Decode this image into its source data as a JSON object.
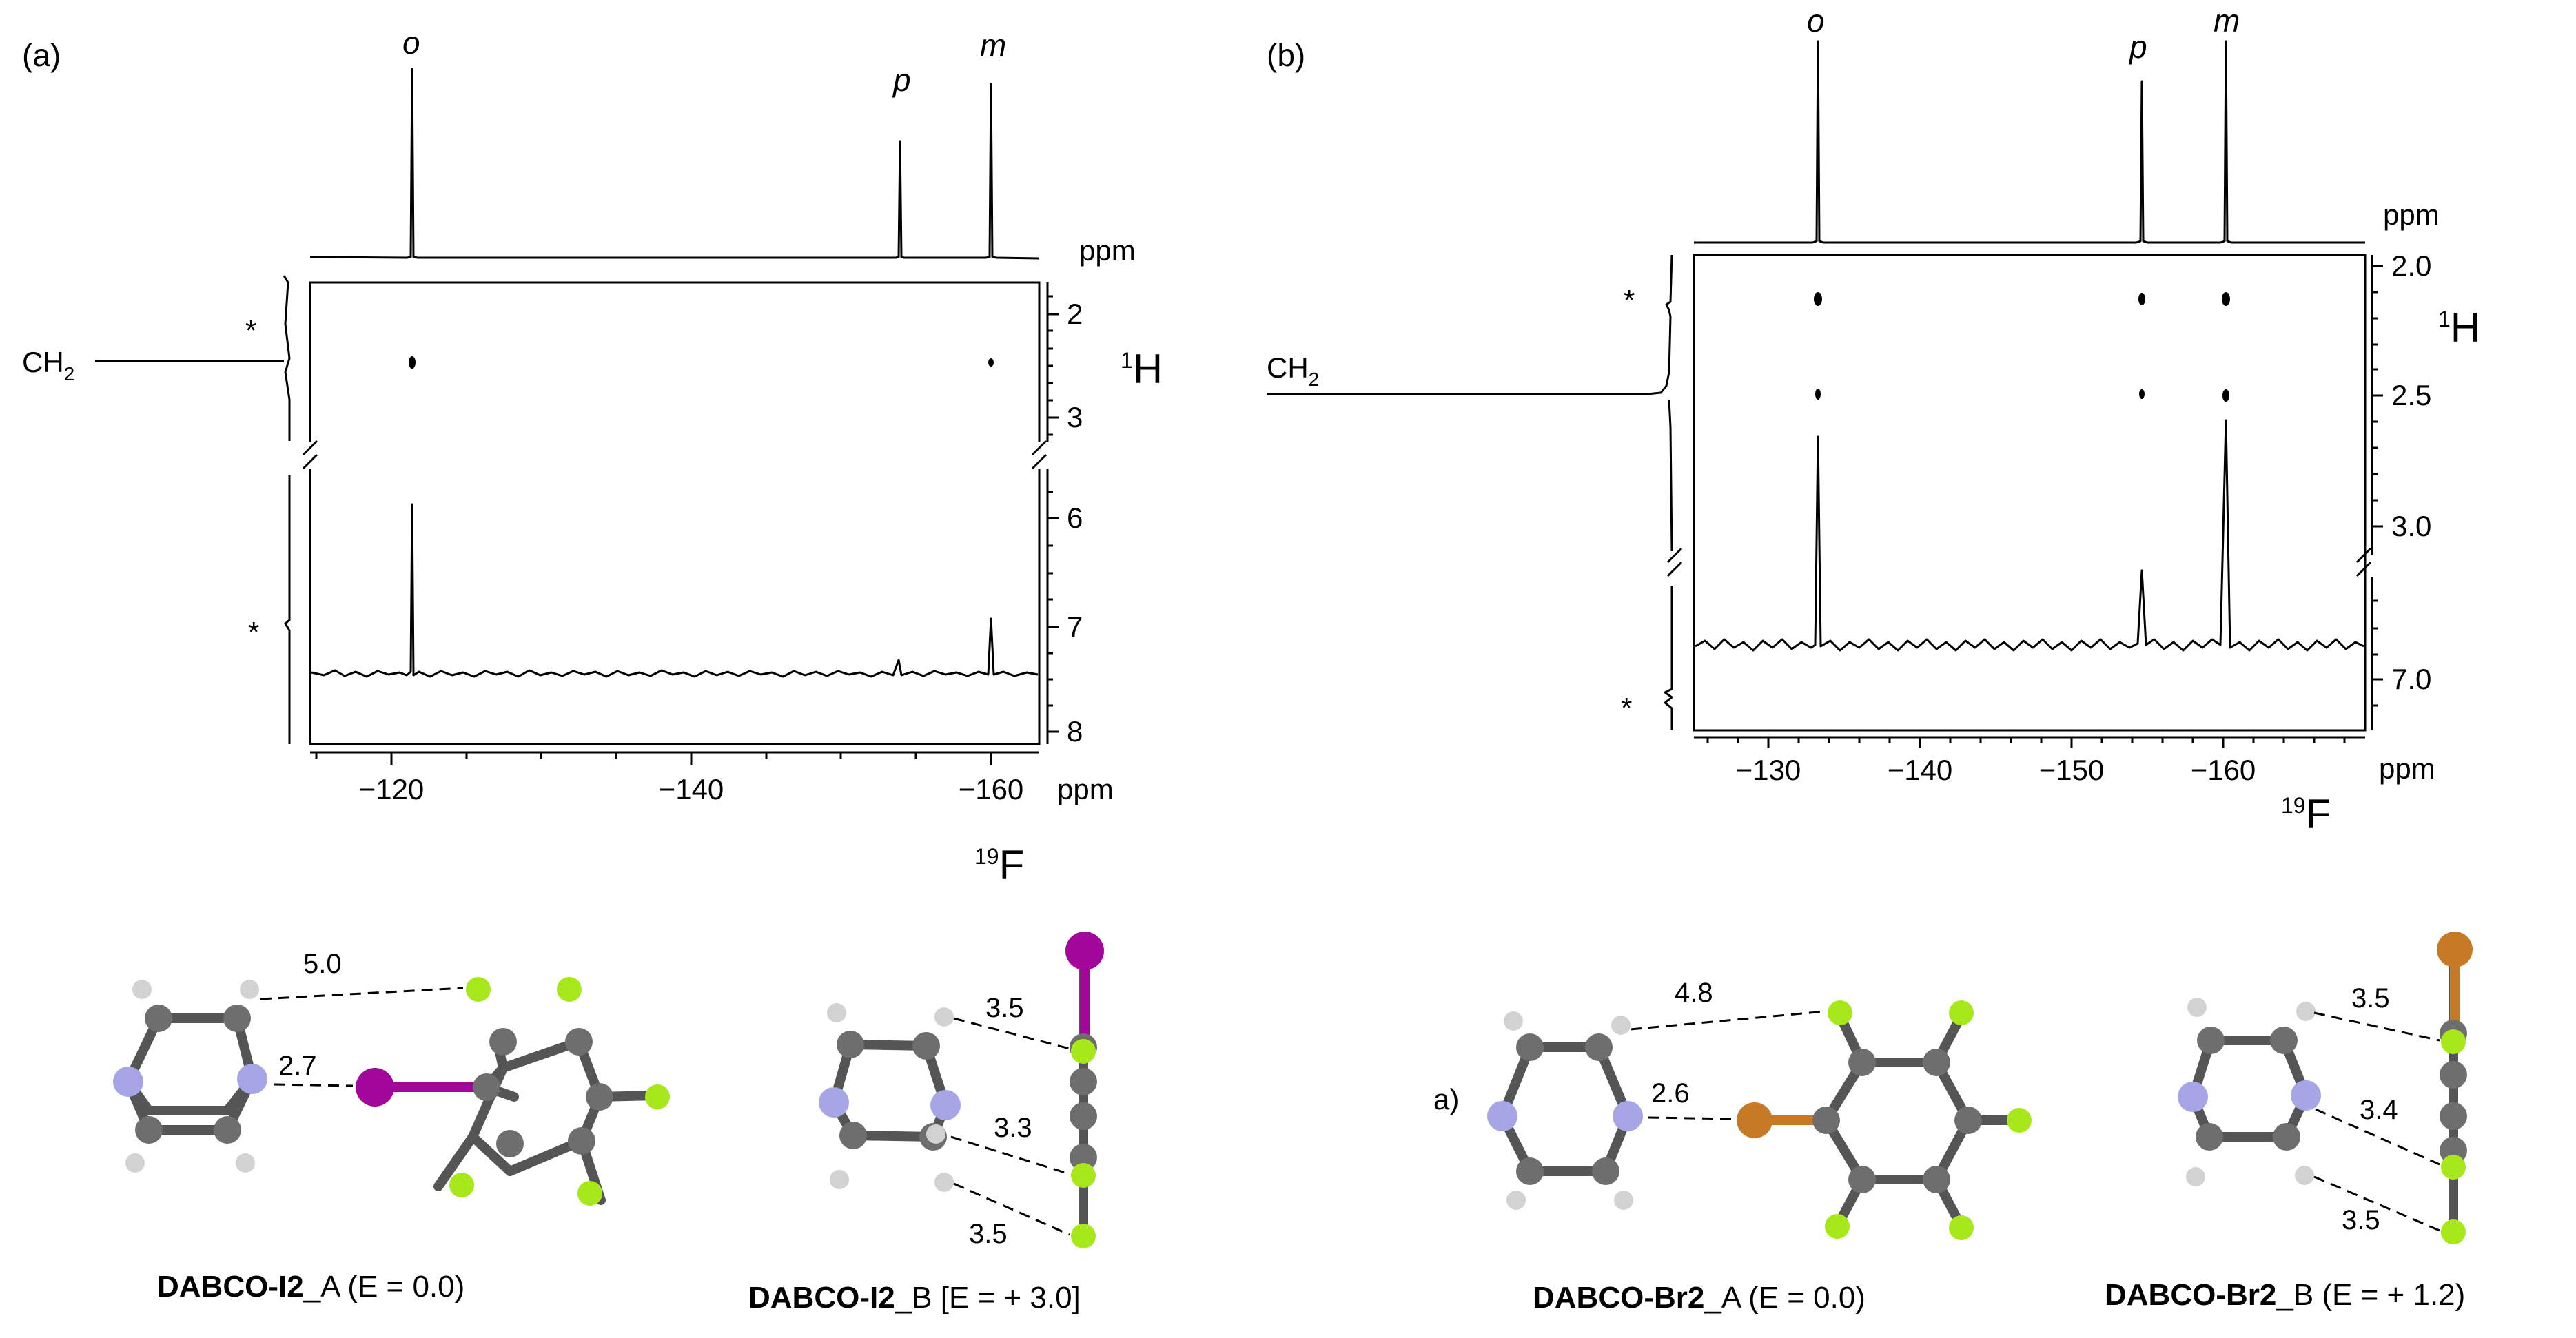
{
  "panels": [
    {
      "label": "(a)",
      "peaks": [
        "o",
        "p",
        "m"
      ],
      "f_unit": "ppm",
      "f_ticks": [
        "−120",
        "−140",
        "−160"
      ],
      "h_unit_sup": "1",
      "h_unit": "H",
      "f_nucleus_sup": "19",
      "f_nucleus": "F",
      "h_ticks_upper": [
        "2",
        "3"
      ],
      "h_ticks_lower": [
        "6",
        "7",
        "8"
      ],
      "ch2_label": "CH",
      "ch2_sub": "2",
      "star": "*",
      "top_ppm": "ppm"
    },
    {
      "label": "(b)",
      "peaks": [
        "o",
        "p",
        "m"
      ],
      "f_unit": "ppm",
      "f_ticks": [
        "−130",
        "−140",
        "−150",
        "−160"
      ],
      "h_unit_sup": "1",
      "h_unit": "H",
      "f_nucleus_sup": "19",
      "f_nucleus": "F",
      "h_ticks_upper": [
        "2.0",
        "2.5",
        "3.0"
      ],
      "h_ticks_lower": [
        "7.0"
      ],
      "ch2_label": "CH",
      "ch2_sub": "2",
      "star": "*",
      "top_ppm": "ppm"
    }
  ],
  "structures": [
    {
      "bold": "DABCO-I2",
      "rest": "_A (E = 0.0)",
      "distances": [
        "5.0",
        "2.7"
      ]
    },
    {
      "bold": "DABCO-I2",
      "rest": "_B [E = + 3.0]",
      "distances": [
        "3.5",
        "3.3",
        "3.5"
      ]
    },
    {
      "bold": "DABCO-Br2",
      "rest": "_A (E = 0.0)",
      "distances": [
        "4.8",
        "2.6"
      ],
      "prefix": "a)"
    },
    {
      "bold": "DABCO-Br2",
      "rest": "_B (E = + 1.2)",
      "distances": [
        "3.5",
        "3.4",
        "3.5"
      ]
    }
  ],
  "atom_colors": {
    "carbon": "#6e6e6e",
    "hydrogen": "#d2d2d2",
    "nitrogen": "#a6a6e6",
    "fluorine": "#a7e81a",
    "iodine": "#a3069a",
    "bromine": "#c77a26"
  }
}
